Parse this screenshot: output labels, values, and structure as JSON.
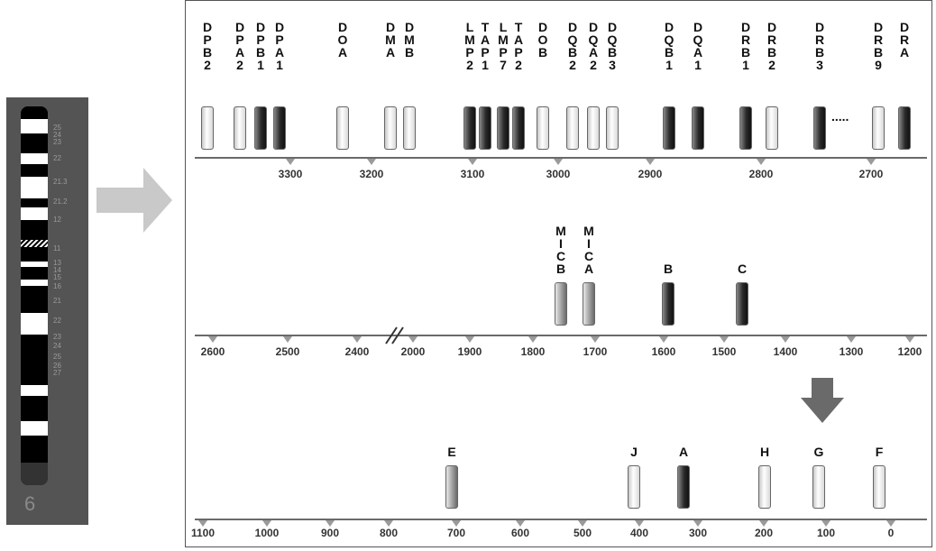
{
  "chromosome": {
    "number": "6",
    "band_labels": [
      "25",
      "24",
      "23",
      "22",
      "21.3",
      "21.2",
      "12",
      "11",
      "13",
      "14",
      "15",
      "16",
      "21",
      "22",
      "23",
      "24",
      "25",
      "26",
      "27"
    ]
  },
  "rows": [
    {
      "axis_ticks": [
        "3300",
        "3200",
        "3100",
        "3000",
        "2900",
        "2800",
        "2700"
      ],
      "genes": [
        {
          "label": "DPB2",
          "shade": "light"
        },
        {
          "label": "DPA2",
          "shade": "light"
        },
        {
          "label": "DPB1",
          "shade": "dark"
        },
        {
          "label": "DPA1",
          "shade": "dark"
        },
        {
          "label": "DOA",
          "shade": "light"
        },
        {
          "label": "DMA",
          "shade": "light"
        },
        {
          "label": "DMB",
          "shade": "light"
        },
        {
          "label": "LMP2",
          "shade": "dark"
        },
        {
          "label": "TAP1",
          "shade": "dark"
        },
        {
          "label": "LMP7",
          "shade": "dark"
        },
        {
          "label": "TAP2",
          "shade": "dark"
        },
        {
          "label": "DOB",
          "shade": "light"
        },
        {
          "label": "DQB2",
          "shade": "light"
        },
        {
          "label": "DQA2",
          "shade": "light"
        },
        {
          "label": "DQB3",
          "shade": "light"
        },
        {
          "label": "DQB1",
          "shade": "dark"
        },
        {
          "label": "DQA1",
          "shade": "dark"
        },
        {
          "label": "DRB1",
          "shade": "dark"
        },
        {
          "label": "DRB2",
          "shade": "light"
        },
        {
          "label": "DRB3",
          "shade": "dark"
        },
        {
          "label": "DRB9",
          "shade": "light"
        },
        {
          "label": "DRA",
          "shade": "dark"
        }
      ],
      "ellipsis": "....."
    },
    {
      "axis_ticks": [
        "2600",
        "2500",
        "2400",
        "2000",
        "1900",
        "1800",
        "1700",
        "1600",
        "1500",
        "1400",
        "1300",
        "1200"
      ],
      "genes": [
        {
          "label": "MICB",
          "shade": "mid"
        },
        {
          "label": "MICA",
          "shade": "mid"
        },
        {
          "label": "B",
          "shade": "dark"
        },
        {
          "label": "C",
          "shade": "dark"
        }
      ]
    },
    {
      "axis_ticks": [
        "1100",
        "1000",
        "900",
        "800",
        "700",
        "600",
        "500",
        "400",
        "300",
        "200",
        "100",
        "0"
      ],
      "genes": [
        {
          "label": "E",
          "shade": "mid"
        },
        {
          "label": "J",
          "shade": "light"
        },
        {
          "label": "A",
          "shade": "dark"
        },
        {
          "label": "H",
          "shade": "light"
        },
        {
          "label": "G",
          "shade": "light"
        },
        {
          "label": "F",
          "shade": "light"
        }
      ]
    }
  ],
  "colors": {
    "panel": "#545454",
    "axis": "#6a6a6a",
    "arrow": "#c8c8c8",
    "down_arrow": "#6a6a6a"
  }
}
